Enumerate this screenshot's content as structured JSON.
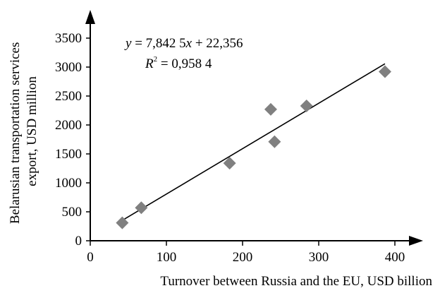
{
  "chart_data": {
    "type": "scatter",
    "title": "",
    "xlabel": "Turnover between Russia and the EU, USD billion",
    "ylabel_lines": [
      "Belarusian transportation services",
      "export, USD million"
    ],
    "xlim": [
      0,
      400
    ],
    "ylim": [
      0,
      3500
    ],
    "xticks": [
      0,
      100,
      200,
      300,
      400
    ],
    "yticks": [
      0,
      500,
      1000,
      1500,
      2000,
      2500,
      3000,
      3500
    ],
    "grid": false,
    "legend": "none",
    "series": [
      {
        "marker": "diamond",
        "color": "#808080",
        "points": [
          {
            "x": 42,
            "y": 310
          },
          {
            "x": 67,
            "y": 570
          },
          {
            "x": 183,
            "y": 1340
          },
          {
            "x": 237,
            "y": 2270
          },
          {
            "x": 242,
            "y": 1710
          },
          {
            "x": 284,
            "y": 2330
          },
          {
            "x": 387,
            "y": 2920
          }
        ]
      }
    ],
    "trendline": {
      "type": "linear",
      "slope": 7.8425,
      "intercept": 22.356,
      "x_range": [
        40,
        387
      ],
      "color": "#000000"
    },
    "annotations": {
      "equation_prefix": "y",
      "equation_middle": " = 7,842 5",
      "equation_var": "x",
      "equation_suffix": " + 22,356",
      "r2_var": "R",
      "r2_exp": "2",
      "r2_value": " = 0,958 4"
    }
  }
}
